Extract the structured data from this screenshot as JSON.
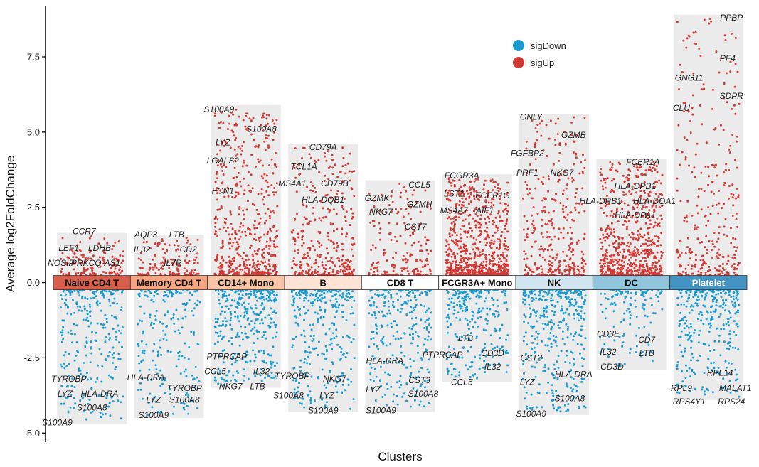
{
  "chart_data": {
    "type": "scatter",
    "title": "",
    "xlabel": "Clusters",
    "ylabel": "Average log2FoldChange",
    "ylim": [
      -5.3,
      9.2
    ],
    "yticks": [
      -5.0,
      -2.5,
      0.0,
      2.5,
      5.0,
      7.5
    ],
    "ytick_labels": [
      "-5.0",
      "-2.5",
      "0.0",
      "2.5",
      "5.0",
      "7.5"
    ],
    "grid": false,
    "legend": {
      "placement": "top-right",
      "entries": [
        {
          "name": "sigDown",
          "color": "#1B9CD0"
        },
        {
          "name": "sigUp",
          "color": "#D23A35"
        }
      ]
    },
    "colors": {
      "sigDown": "#1B9CD0",
      "sigUp": "#D23A35",
      "range_band": "#EBEBEB"
    },
    "clusters": [
      {
        "name": "Naive CD4 T",
        "color": "#D6604D",
        "text_color": "#111111",
        "up_max": 1.55,
        "down_min": -4.6,
        "n_up": 140,
        "n_down": 260,
        "labels": [
          {
            "gene": "CCR7",
            "y": 1.7,
            "dx": -0.1
          },
          {
            "gene": "LEF1",
            "y": 1.15,
            "dx": -0.3
          },
          {
            "gene": "LDHB",
            "y": 1.15,
            "dx": 0.1
          },
          {
            "gene": "NOSIP",
            "y": 0.65,
            "dx": -0.4
          },
          {
            "gene": "PRKCQ-AS1",
            "y": 0.65,
            "dx": 0.05
          },
          {
            "gene": "TYROBP",
            "y": -3.2,
            "dx": -0.3
          },
          {
            "gene": "LYZ",
            "y": -3.7,
            "dx": -0.35
          },
          {
            "gene": "HLA-DRA",
            "y": -3.7,
            "dx": 0.1
          },
          {
            "gene": "S100A8",
            "y": -4.15,
            "dx": 0.0
          },
          {
            "gene": "S100A9",
            "y": -4.65,
            "dx": -0.45
          }
        ]
      },
      {
        "name": "Memory CD4 T",
        "color": "#F4A582",
        "text_color": "#111111",
        "up_max": 1.5,
        "down_min": -4.4,
        "n_up": 130,
        "n_down": 200,
        "labels": [
          {
            "gene": "AQP3",
            "y": 1.6,
            "dx": -0.3
          },
          {
            "gene": "LTB",
            "y": 1.6,
            "dx": 0.1
          },
          {
            "gene": "IL32",
            "y": 1.1,
            "dx": -0.35
          },
          {
            "gene": "CD2",
            "y": 1.1,
            "dx": 0.25
          },
          {
            "gene": "IL7R",
            "y": 0.65,
            "dx": 0.05
          },
          {
            "gene": "HLA-DRA",
            "y": -3.15,
            "dx": -0.3
          },
          {
            "gene": "TYROBP",
            "y": -3.5,
            "dx": 0.2
          },
          {
            "gene": "LYZ",
            "y": -3.9,
            "dx": -0.2
          },
          {
            "gene": "S100A8",
            "y": -3.9,
            "dx": 0.2
          },
          {
            "gene": "S100A9",
            "y": -4.4,
            "dx": -0.2
          }
        ]
      },
      {
        "name": "CD14+ Mono",
        "color": "#F7C4A5",
        "text_color": "#111111",
        "up_max": 5.8,
        "down_min": -3.4,
        "n_up": 520,
        "n_down": 320,
        "labels": [
          {
            "gene": "S100A9",
            "y": 5.75,
            "dx": -0.35
          },
          {
            "gene": "S100A8",
            "y": 5.1,
            "dx": 0.2
          },
          {
            "gene": "LYZ",
            "y": 4.65,
            "dx": -0.3
          },
          {
            "gene": "LGALS2",
            "y": 4.05,
            "dx": -0.3
          },
          {
            "gene": "FCN1",
            "y": 3.05,
            "dx": -0.3
          },
          {
            "gene": "PTPRCAP",
            "y": -2.45,
            "dx": -0.25
          },
          {
            "gene": "CCL5",
            "y": -2.95,
            "dx": -0.4
          },
          {
            "gene": "IL32",
            "y": -2.95,
            "dx": 0.2
          },
          {
            "gene": "NKG7",
            "y": -3.45,
            "dx": -0.2
          },
          {
            "gene": "LTB",
            "y": -3.45,
            "dx": 0.15
          }
        ]
      },
      {
        "name": "B",
        "color": "#FDE3D6",
        "text_color": "#111111",
        "up_max": 4.5,
        "down_min": -4.2,
        "n_up": 330,
        "n_down": 300,
        "labels": [
          {
            "gene": "CD79A",
            "y": 4.5,
            "dx": 0.0
          },
          {
            "gene": "TCL1A",
            "y": 3.85,
            "dx": -0.25
          },
          {
            "gene": "MS4A1",
            "y": 3.3,
            "dx": -0.4
          },
          {
            "gene": "CD79B",
            "y": 3.3,
            "dx": 0.15
          },
          {
            "gene": "HLA-DQB1",
            "y": 2.75,
            "dx": 0.0
          },
          {
            "gene": "TYROBP",
            "y": -3.1,
            "dx": -0.4
          },
          {
            "gene": "NKG7",
            "y": -3.2,
            "dx": 0.15
          },
          {
            "gene": "S100A8",
            "y": -3.75,
            "dx": -0.45
          },
          {
            "gene": "LYZ",
            "y": -3.75,
            "dx": 0.05
          },
          {
            "gene": "S100A9",
            "y": -4.25,
            "dx": 0.0
          }
        ]
      },
      {
        "name": "CD8 T",
        "color": "#FFFFFF",
        "text_color": "#111111",
        "up_max": 3.3,
        "down_min": -4.2,
        "n_up": 180,
        "n_down": 260,
        "labels": [
          {
            "gene": "CCL5",
            "y": 3.25,
            "dx": 0.25
          },
          {
            "gene": "GZMK",
            "y": 2.8,
            "dx": -0.3
          },
          {
            "gene": "GZMH",
            "y": 2.6,
            "dx": 0.25
          },
          {
            "gene": "NKG7",
            "y": 2.35,
            "dx": -0.25
          },
          {
            "gene": "CST7",
            "y": 1.85,
            "dx": 0.2
          },
          {
            "gene": "HLA-DRA",
            "y": -2.6,
            "dx": -0.2
          },
          {
            "gene": "CST3",
            "y": -3.25,
            "dx": 0.25
          },
          {
            "gene": "LYZ",
            "y": -3.55,
            "dx": -0.35
          },
          {
            "gene": "S100A8",
            "y": -3.7,
            "dx": 0.3
          },
          {
            "gene": "S100A9",
            "y": -4.25,
            "dx": -0.25
          }
        ]
      },
      {
        "name": "FCGR3A+ Mono",
        "color": "#FFFFFF",
        "text_color": "#111111",
        "up_max": 3.5,
        "down_min": -3.2,
        "n_up": 700,
        "n_down": 240,
        "labels": [
          {
            "gene": "FCGR3A",
            "y": 3.55,
            "dx": -0.2
          },
          {
            "gene": "LST1",
            "y": 2.95,
            "dx": -0.3
          },
          {
            "gene": "FCER1G",
            "y": 2.9,
            "dx": 0.2
          },
          {
            "gene": "MS4A7",
            "y": 2.4,
            "dx": -0.3
          },
          {
            "gene": "AIF1",
            "y": 2.4,
            "dx": 0.1
          },
          {
            "gene": "LTB",
            "y": -1.85,
            "dx": -0.15
          },
          {
            "gene": "PTPRCAP",
            "y": -2.4,
            "dx": -0.45
          },
          {
            "gene": "CD3D",
            "y": -2.35,
            "dx": 0.2
          },
          {
            "gene": "IL32",
            "y": -2.8,
            "dx": 0.2
          },
          {
            "gene": "CCL5",
            "y": -3.3,
            "dx": -0.2
          }
        ]
      },
      {
        "name": "NK",
        "color": "#D1E5F0",
        "text_color": "#111111",
        "up_max": 5.5,
        "down_min": -4.3,
        "n_up": 330,
        "n_down": 380,
        "labels": [
          {
            "gene": "GNLY",
            "y": 5.5,
            "dx": -0.3
          },
          {
            "gene": "GZMB",
            "y": 4.9,
            "dx": 0.25
          },
          {
            "gene": "FGFBP2",
            "y": 4.3,
            "dx": -0.35
          },
          {
            "gene": "PRF1",
            "y": 3.65,
            "dx": -0.35
          },
          {
            "gene": "NKG7",
            "y": 3.65,
            "dx": 0.1
          },
          {
            "gene": "CST3",
            "y": -2.5,
            "dx": -0.3
          },
          {
            "gene": "HLA-DRA",
            "y": -3.05,
            "dx": 0.25
          },
          {
            "gene": "LYZ",
            "y": -3.3,
            "dx": -0.35
          },
          {
            "gene": "S100A8",
            "y": -3.85,
            "dx": 0.2
          },
          {
            "gene": "S100A9",
            "y": -4.35,
            "dx": -0.3
          }
        ]
      },
      {
        "name": "DC",
        "color": "#92C5DE",
        "text_color": "#111111",
        "up_max": 4.0,
        "down_min": -2.8,
        "n_up": 620,
        "n_down": 120,
        "labels": [
          {
            "gene": "FCER1A",
            "y": 4.0,
            "dx": 0.15
          },
          {
            "gene": "HLA-DPB1",
            "y": 3.2,
            "dx": 0.05
          },
          {
            "gene": "HLA-DRB1",
            "y": 2.7,
            "dx": -0.4
          },
          {
            "gene": "HLA-DQA1",
            "y": 2.7,
            "dx": 0.3
          },
          {
            "gene": "HLA-DPA1",
            "y": 2.25,
            "dx": 0.05
          },
          {
            "gene": "CD3E",
            "y": -1.7,
            "dx": -0.3
          },
          {
            "gene": "CD7",
            "y": -1.9,
            "dx": 0.2
          },
          {
            "gene": "IL32",
            "y": -2.3,
            "dx": -0.3
          },
          {
            "gene": "LTB",
            "y": -2.35,
            "dx": 0.2
          },
          {
            "gene": "CD3D",
            "y": -2.8,
            "dx": -0.25
          }
        ]
      },
      {
        "name": "Platelet",
        "color": "#4393C3",
        "text_color": "#FFFFFF",
        "up_max": 8.8,
        "down_min": -3.8,
        "n_up": 300,
        "n_down": 300,
        "labels": [
          {
            "gene": "PPBP",
            "y": 8.8,
            "dx": 0.3
          },
          {
            "gene": "PF4",
            "y": 7.45,
            "dx": 0.25
          },
          {
            "gene": "GNG11",
            "y": 6.8,
            "dx": -0.25
          },
          {
            "gene": "SDPR",
            "y": 6.2,
            "dx": 0.3
          },
          {
            "gene": "CLU",
            "y": 5.8,
            "dx": -0.35
          },
          {
            "gene": "RPL14",
            "y": -3.0,
            "dx": 0.15
          },
          {
            "gene": "RPL9",
            "y": -3.5,
            "dx": -0.35
          },
          {
            "gene": "MALAT1",
            "y": -3.5,
            "dx": 0.35
          },
          {
            "gene": "RPS4Y1",
            "y": -3.95,
            "dx": -0.25
          },
          {
            "gene": "RPS24",
            "y": -3.95,
            "dx": 0.3
          }
        ]
      }
    ]
  }
}
